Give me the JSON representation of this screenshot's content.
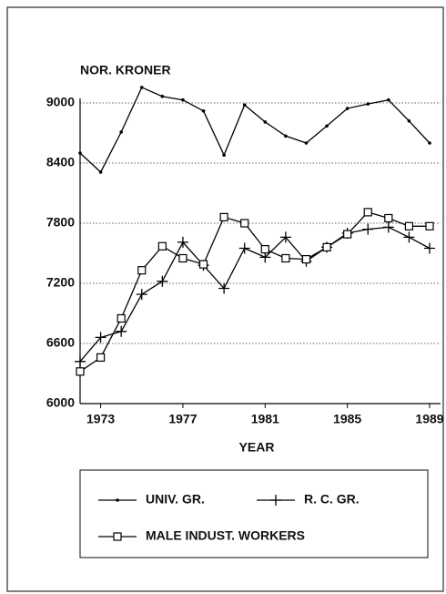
{
  "chart_data": {
    "type": "line",
    "y_label": "NOR. KRONER",
    "x_label": "YEAR",
    "x": [
      1972,
      1973,
      1974,
      1975,
      1976,
      1977,
      1978,
      1979,
      1980,
      1981,
      1982,
      1983,
      1984,
      1985,
      1986,
      1987,
      1988,
      1989
    ],
    "series": [
      {
        "name": "UNIV. GR.",
        "color": "#000000",
        "marker": "dot",
        "values": [
          8500,
          8310,
          8710,
          9155,
          9065,
          9030,
          8920,
          8480,
          8980,
          8810,
          8670,
          8600,
          8770,
          8945,
          8990,
          9030,
          8820,
          8600
        ]
      },
      {
        "name": "R. C. GR.",
        "color": "#000000",
        "marker": "plus",
        "values": [
          6420,
          6660,
          6720,
          7090,
          7220,
          7610,
          7380,
          7150,
          7550,
          7460,
          7660,
          7420,
          7560,
          7700,
          7740,
          7760,
          7660,
          7550
        ]
      },
      {
        "name": "MALE INDUST. WORKERS",
        "color": "#000000",
        "marker": "square",
        "values": [
          6320,
          6460,
          6850,
          7330,
          7570,
          7450,
          7390,
          7860,
          7800,
          7540,
          7450,
          7440,
          7560,
          7690,
          7910,
          7850,
          7770,
          7770
        ]
      }
    ],
    "xlim": [
      1972,
      1989
    ],
    "xticks": [
      1973,
      1977,
      1981,
      1985,
      1989
    ],
    "ylim": [
      6000,
      9000
    ],
    "yticks": [
      6000,
      6600,
      7200,
      7800,
      8400,
      9000
    ],
    "grid": true
  }
}
